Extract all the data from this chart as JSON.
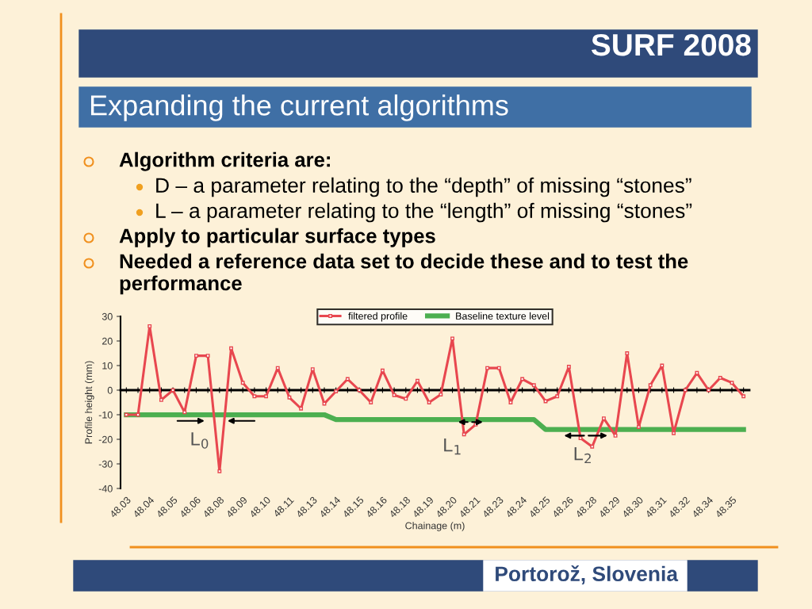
{
  "chart_data": {
    "type": "line",
    "title": "Expanding the current algorithms",
    "xlabel": "Chainage (m)",
    "ylabel": "Profile height (mm)",
    "categories": [
      "48.03",
      null,
      "48.04",
      null,
      "48.05",
      null,
      "48.06",
      null,
      "48.08",
      null,
      "48.09",
      null,
      "48.10",
      null,
      "48.11",
      null,
      "48.13",
      null,
      "48.14",
      null,
      "48.15",
      null,
      "48.16",
      null,
      "48.18",
      null,
      "48.19",
      null,
      "48.20",
      null,
      "48.21",
      null,
      "48.23",
      null,
      "48.24",
      null,
      "48.25",
      null,
      "48.26",
      null,
      "48.28",
      null,
      "48.29",
      null,
      "48.30",
      null,
      "48.31",
      null,
      "48.32",
      null,
      "48.34",
      null,
      "48.35",
      null
    ],
    "series": [
      {
        "name": "filtered profile",
        "color": "#e8474f",
        "marker": "square",
        "values": [
          -10,
          -10,
          26,
          -4,
          0,
          -9,
          14,
          14,
          -33,
          17,
          3,
          -2.5,
          -2.5,
          9,
          -3,
          -7.5,
          8.5,
          -5.5,
          -0.5,
          4.5,
          0,
          -5,
          8,
          -2,
          -3.5,
          3.8,
          -5,
          -1.8,
          21,
          -18,
          -14,
          9,
          9,
          -5,
          4.5,
          2,
          -4.5,
          -2.5,
          9.5,
          -19.5,
          -23,
          -11.5,
          -18.5,
          15,
          -15,
          2,
          10,
          -17.5,
          0,
          7,
          0,
          5,
          3,
          -2.5
        ]
      },
      {
        "name": "Baseline texture level",
        "color": "#4caf50",
        "marker": "none",
        "values": [
          -10,
          -10,
          -10,
          -10,
          -10,
          -10,
          -10,
          -10,
          -10,
          -10,
          -10,
          -10,
          -10,
          -10,
          -10,
          -10,
          -10,
          -10,
          -12,
          -12,
          -12,
          -12,
          -12,
          -12,
          -12,
          -12,
          -12,
          -12,
          -12,
          -12,
          -12,
          -12,
          -12,
          -12,
          -12,
          -12,
          -16,
          -16,
          -16,
          -16,
          -16,
          -16,
          -16,
          -16,
          -16,
          -16,
          -16,
          -16,
          -16,
          -16,
          -16,
          -16,
          -16,
          -16
        ]
      }
    ],
    "ylim": [
      -40,
      30
    ],
    "yticks": [
      -40,
      -30,
      -20,
      -10,
      0,
      10,
      20,
      30
    ],
    "legend": "top",
    "line_style": "solid",
    "annotations": [
      "SURF 2008",
      "Algorithm criteria are:",
      "D – a parameter relating to the “depth” of missing “stones”",
      "L – a parameter relating to the “length” of missing “stones”",
      "Apply to particular surface types",
      "Needed a reference data set to decide these and to test the performance",
      "Portorož, Slovenia",
      "L$_{0}$",
      "L$_{1}$",
      "L$_{2}$"
    ]
  }
}
